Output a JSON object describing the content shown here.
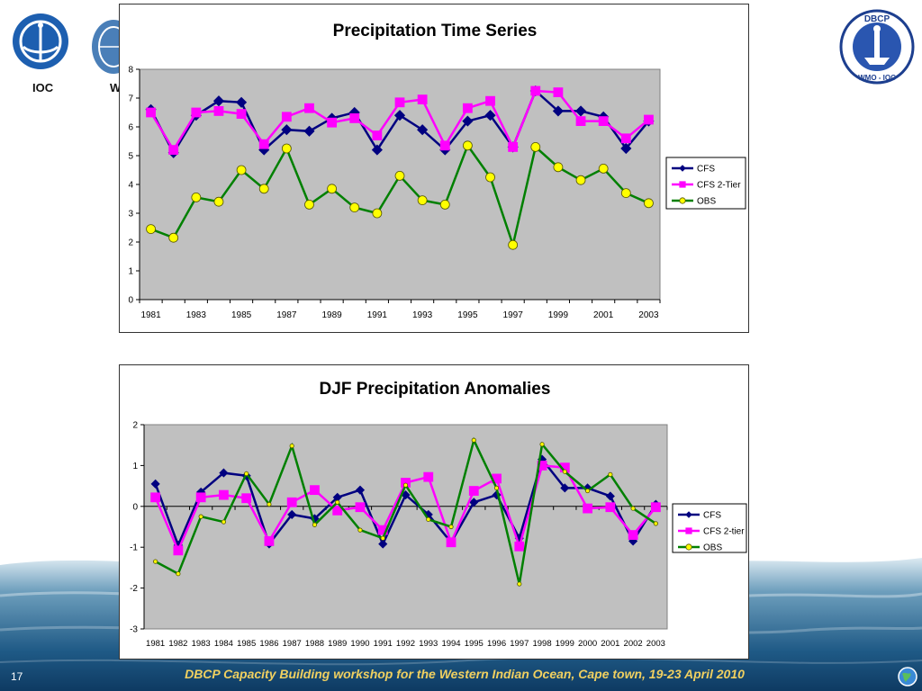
{
  "slide": {
    "logos": {
      "ioc_label": "IOC",
      "wmo_label": "W",
      "dbcp_top_text": "DBCP",
      "dbcp_bottom_text": "WMO - IOC"
    },
    "footer_text": "DBCP Capacity Building workshop for the Western Indian Ocean, Cape town, 19-23 April 2010",
    "slide_number": "17",
    "colors": {
      "cfs": "#000080",
      "cfs_2tier": "#ff00ff",
      "obs": "#008000",
      "obs_marker": "#ffff00",
      "plot_bg": "#c0c0c0"
    }
  },
  "chart_data": [
    {
      "type": "line",
      "title": "Precipitation Time Series",
      "xlabel": "",
      "ylabel": "",
      "x": [
        1981,
        1982,
        1983,
        1984,
        1985,
        1986,
        1987,
        1988,
        1989,
        1990,
        1991,
        1992,
        1993,
        1994,
        1995,
        1996,
        1997,
        1998,
        1999,
        2000,
        2001,
        2002,
        2003
      ],
      "x_tick_labels": [
        "1981",
        "1983",
        "1985",
        "1987",
        "1989",
        "1991",
        "1993",
        "1995",
        "1997",
        "1999",
        "2001",
        "2003"
      ],
      "ylim": [
        0,
        8
      ],
      "y_ticks": [
        0,
        1,
        2,
        3,
        4,
        5,
        6,
        7,
        8
      ],
      "grid": false,
      "legend_position": "right",
      "series": [
        {
          "name": "CFS",
          "marker": "diamond",
          "values": [
            6.6,
            5.1,
            6.4,
            6.9,
            6.85,
            5.2,
            5.9,
            5.85,
            6.3,
            6.5,
            5.2,
            6.4,
            5.9,
            5.2,
            6.2,
            6.4,
            5.3,
            7.25,
            6.55,
            6.55,
            6.35,
            5.25,
            6.2
          ]
        },
        {
          "name": "CFS 2-Tier",
          "marker": "square",
          "values": [
            6.5,
            5.2,
            6.5,
            6.55,
            6.45,
            5.4,
            6.35,
            6.65,
            6.15,
            6.3,
            5.7,
            6.85,
            6.95,
            5.35,
            6.65,
            6.9,
            5.3,
            7.25,
            7.2,
            6.2,
            6.2,
            5.6,
            6.25
          ]
        },
        {
          "name": "OBS",
          "marker": "circle",
          "values": [
            2.45,
            2.15,
            3.55,
            3.4,
            4.5,
            3.85,
            5.25,
            3.3,
            3.85,
            3.2,
            3.0,
            4.3,
            3.45,
            3.3,
            5.35,
            4.25,
            1.9,
            5.3,
            4.6,
            4.15,
            4.55,
            3.7,
            3.35
          ]
        }
      ]
    },
    {
      "type": "line",
      "title": "DJF Precipitation Anomalies",
      "xlabel": "",
      "ylabel": "",
      "x": [
        1981,
        1982,
        1983,
        1984,
        1985,
        1986,
        1987,
        1988,
        1989,
        1990,
        1991,
        1992,
        1993,
        1994,
        1995,
        1996,
        1997,
        1998,
        1999,
        2000,
        2001,
        2002,
        2003
      ],
      "x_tick_labels": [
        "1981",
        "1982",
        "1983",
        "1984",
        "1985",
        "1986",
        "1987",
        "1988",
        "1989",
        "1990",
        "1991",
        "1992",
        "1993",
        "1994",
        "1995",
        "1996",
        "1997",
        "1998",
        "1999",
        "2000",
        "2001",
        "2002",
        "2003"
      ],
      "ylim": [
        -3,
        2
      ],
      "y_ticks": [
        -3,
        -2,
        -1,
        0,
        1,
        2
      ],
      "grid": false,
      "legend_position": "right",
      "series": [
        {
          "name": "CFS",
          "marker": "diamond",
          "values": [
            0.55,
            -0.95,
            0.35,
            0.82,
            0.75,
            -0.92,
            -0.2,
            -0.3,
            0.22,
            0.4,
            -0.92,
            0.28,
            -0.2,
            -0.88,
            0.1,
            0.28,
            -0.78,
            1.15,
            0.45,
            0.45,
            0.25,
            -0.85,
            0.05
          ]
        },
        {
          "name": "CFS 2-tier",
          "marker": "square",
          "values": [
            0.22,
            -1.08,
            0.22,
            0.28,
            0.2,
            -0.85,
            0.1,
            0.4,
            -0.1,
            -0.02,
            -0.58,
            0.58,
            0.72,
            -0.88,
            0.38,
            0.68,
            -0.98,
            1.0,
            0.95,
            -0.05,
            -0.02,
            -0.7,
            -0.02
          ]
        },
        {
          "name": "OBS",
          "marker": "circle",
          "values": [
            -1.35,
            -1.65,
            -0.25,
            -0.38,
            0.8,
            0.05,
            1.48,
            -0.45,
            0.1,
            -0.58,
            -0.78,
            0.52,
            -0.32,
            -0.5,
            1.62,
            0.45,
            -1.9,
            1.52,
            0.85,
            0.38,
            0.78,
            -0.05,
            -0.42
          ]
        }
      ]
    }
  ]
}
